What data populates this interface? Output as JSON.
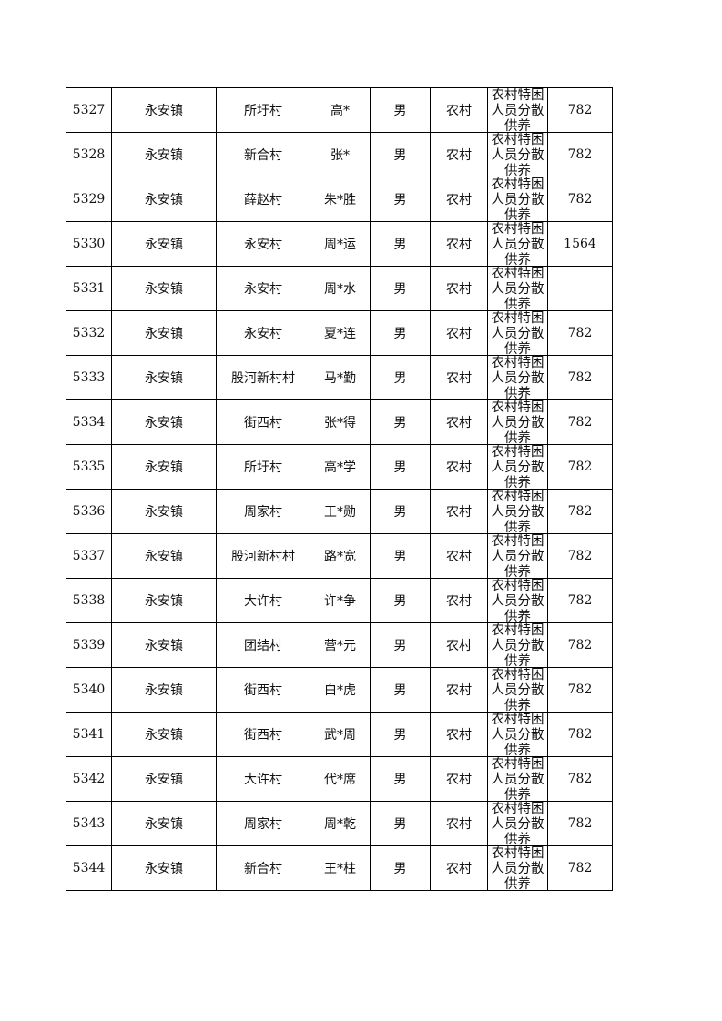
{
  "rows": [
    {
      "id": "5327",
      "town": "永安镇",
      "village": "所圩村",
      "name": "高*",
      "gender": "男",
      "type": "农村",
      "category": "农村特困人员分散供养",
      "amount": "782"
    },
    {
      "id": "5328",
      "town": "永安镇",
      "village": "新合村",
      "name": "张*",
      "gender": "男",
      "type": "农村",
      "category": "农村特困人员分散供养",
      "amount": "782"
    },
    {
      "id": "5329",
      "town": "永安镇",
      "village": "薛赵村",
      "name": "朱*胜",
      "gender": "男",
      "type": "农村",
      "category": "农村特困人员分散供养",
      "amount": "782"
    },
    {
      "id": "5330",
      "town": "永安镇",
      "village": "永安村",
      "name": "周*运",
      "gender": "男",
      "type": "农村",
      "category": "农村特困人员分散供养",
      "amount": "1564"
    },
    {
      "id": "5331",
      "town": "永安镇",
      "village": "永安村",
      "name": "周*水",
      "gender": "男",
      "type": "农村",
      "category": "农村特困人员分散供养",
      "amount": ""
    },
    {
      "id": "5332",
      "town": "永安镇",
      "village": "永安村",
      "name": "夏*连",
      "gender": "男",
      "type": "农村",
      "category": "农村特困人员分散供养",
      "amount": "782"
    },
    {
      "id": "5333",
      "town": "永安镇",
      "village": "股河新村村",
      "name": "马*勤",
      "gender": "男",
      "type": "农村",
      "category": "农村特困人员分散供养",
      "amount": "782"
    },
    {
      "id": "5334",
      "town": "永安镇",
      "village": "街西村",
      "name": "张*得",
      "gender": "男",
      "type": "农村",
      "category": "农村特困人员分散供养",
      "amount": "782"
    },
    {
      "id": "5335",
      "town": "永安镇",
      "village": "所圩村",
      "name": "高*学",
      "gender": "男",
      "type": "农村",
      "category": "农村特困人员分散供养",
      "amount": "782"
    },
    {
      "id": "5336",
      "town": "永安镇",
      "village": "周家村",
      "name": "王*勋",
      "gender": "男",
      "type": "农村",
      "category": "农村特困人员分散供养",
      "amount": "782"
    },
    {
      "id": "5337",
      "town": "永安镇",
      "village": "股河新村村",
      "name": "路*宽",
      "gender": "男",
      "type": "农村",
      "category": "农村特困人员分散供养",
      "amount": "782"
    },
    {
      "id": "5338",
      "town": "永安镇",
      "village": "大许村",
      "name": "许*争",
      "gender": "男",
      "type": "农村",
      "category": "农村特困人员分散供养",
      "amount": "782"
    },
    {
      "id": "5339",
      "town": "永安镇",
      "village": "团结村",
      "name": "营*元",
      "gender": "男",
      "type": "农村",
      "category": "农村特困人员分散供养",
      "amount": "782"
    },
    {
      "id": "5340",
      "town": "永安镇",
      "village": "街西村",
      "name": "白*虎",
      "gender": "男",
      "type": "农村",
      "category": "农村特困人员分散供养",
      "amount": "782"
    },
    {
      "id": "5341",
      "town": "永安镇",
      "village": "街西村",
      "name": "武*周",
      "gender": "男",
      "type": "农村",
      "category": "农村特困人员分散供养",
      "amount": "782"
    },
    {
      "id": "5342",
      "town": "永安镇",
      "village": "大许村",
      "name": "代*席",
      "gender": "男",
      "type": "农村",
      "category": "农村特困人员分散供养",
      "amount": "782"
    },
    {
      "id": "5343",
      "town": "永安镇",
      "village": "周家村",
      "name": "周*乾",
      "gender": "男",
      "type": "农村",
      "category": "农村特困人员分散供养",
      "amount": "782"
    },
    {
      "id": "5344",
      "town": "永安镇",
      "village": "新合村",
      "name": "王*柱",
      "gender": "男",
      "type": "农村",
      "category": "农村特困人员分散供养",
      "amount": "782"
    }
  ]
}
